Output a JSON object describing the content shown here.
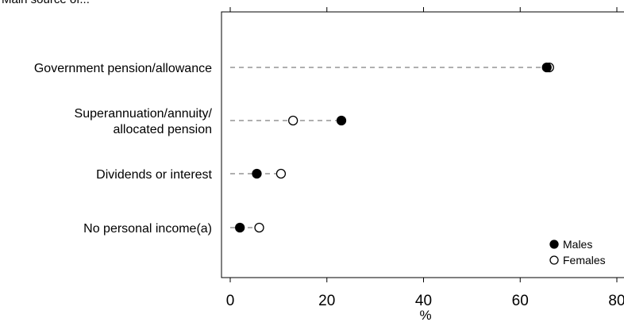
{
  "header": {
    "cut_text": "Main source of..."
  },
  "chart_data": {
    "type": "dot",
    "title": "",
    "xlabel": "%",
    "ylabel": "",
    "xlim": [
      0,
      80
    ],
    "xticks": [
      0,
      20,
      40,
      60,
      80
    ],
    "grid": false,
    "legend_position": "bottom-right",
    "categories": [
      [
        "Government pension/allowance"
      ],
      [
        "Superannuation/annuity/",
        "allocated pension"
      ],
      [
        "Dividends or interest"
      ],
      [
        "No personal income(a)"
      ]
    ],
    "series": [
      {
        "name": "Males",
        "marker": "filled-circle",
        "color": "#000000",
        "values": [
          65.5,
          23.0,
          5.5,
          2.0
        ]
      },
      {
        "name": "Females",
        "marker": "open-circle",
        "color": "#000000",
        "values": [
          66.0,
          13.0,
          10.5,
          6.0
        ]
      }
    ],
    "connector_color": "#7f7f7f"
  }
}
